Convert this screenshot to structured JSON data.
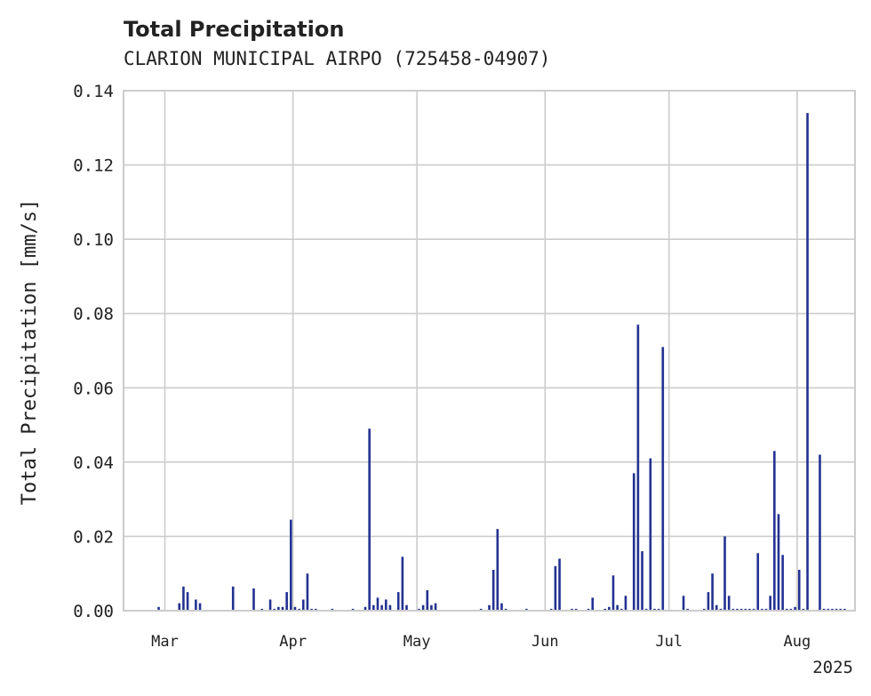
{
  "chart_data": {
    "type": "bar",
    "title": "Total Precipitation",
    "subtitle": "CLARION MUNICIPAL AIRPO (725458-04907)",
    "xlabel": "",
    "ylabel": "Total Precipitation [mm/s]",
    "ylim": [
      0,
      0.14
    ],
    "xlim": [
      "2025-02-19",
      "2025-08-15"
    ],
    "y_ticks": [
      0.0,
      0.02,
      0.04,
      0.06,
      0.08,
      0.1,
      0.12,
      0.14
    ],
    "x_ticks": [
      {
        "date": "2025-03-01",
        "label": "Mar"
      },
      {
        "date": "2025-04-01",
        "label": "Apr"
      },
      {
        "date": "2025-05-01",
        "label": "May"
      },
      {
        "date": "2025-06-01",
        "label": "Jun"
      },
      {
        "date": "2025-07-01",
        "label": "Jul"
      },
      {
        "date": "2025-08-01",
        "label": "Aug"
      }
    ],
    "x_offset_label": "2025",
    "grid": true,
    "color": "#233291",
    "series": [
      {
        "x": [
          "2025-02-27",
          "2025-03-04",
          "2025-03-05",
          "2025-03-06",
          "2025-03-08",
          "2025-03-09",
          "2025-03-17",
          "2025-03-22",
          "2025-03-24",
          "2025-03-26",
          "2025-03-27",
          "2025-03-28",
          "2025-03-29",
          "2025-03-30",
          "2025-03-31",
          "2025-04-01",
          "2025-04-02",
          "2025-04-03",
          "2025-04-04",
          "2025-04-05",
          "2025-04-06",
          "2025-04-10",
          "2025-04-15",
          "2025-04-18",
          "2025-04-19",
          "2025-04-20",
          "2025-04-21",
          "2025-04-22",
          "2025-04-23",
          "2025-04-24",
          "2025-04-26",
          "2025-04-27",
          "2025-04-28",
          "2025-05-01",
          "2025-05-02",
          "2025-05-03",
          "2025-05-04",
          "2025-05-05",
          "2025-05-16",
          "2025-05-18",
          "2025-05-19",
          "2025-05-20",
          "2025-05-21",
          "2025-05-22",
          "2025-05-27",
          "2025-06-02",
          "2025-06-03",
          "2025-06-04",
          "2025-06-07",
          "2025-06-08",
          "2025-06-11",
          "2025-06-12",
          "2025-06-15",
          "2025-06-16",
          "2025-06-17",
          "2025-06-18",
          "2025-06-19",
          "2025-06-20",
          "2025-06-22",
          "2025-06-23",
          "2025-06-24",
          "2025-06-25",
          "2025-06-26",
          "2025-06-27",
          "2025-06-28",
          "2025-06-29",
          "2025-07-04",
          "2025-07-05",
          "2025-07-09",
          "2025-07-10",
          "2025-07-11",
          "2025-07-12",
          "2025-07-13",
          "2025-07-14",
          "2025-07-15",
          "2025-07-16",
          "2025-07-17",
          "2025-07-18",
          "2025-07-19",
          "2025-07-20",
          "2025-07-21",
          "2025-07-22",
          "2025-07-23",
          "2025-07-24",
          "2025-07-25",
          "2025-07-26",
          "2025-07-27",
          "2025-07-28",
          "2025-07-29",
          "2025-07-30",
          "2025-07-31",
          "2025-08-01",
          "2025-08-02",
          "2025-08-03",
          "2025-08-06",
          "2025-08-07",
          "2025-08-08",
          "2025-08-09",
          "2025-08-10",
          "2025-08-11",
          "2025-08-12"
        ],
        "values": [
          0.001,
          0.002,
          0.0065,
          0.005,
          0.003,
          0.002,
          0.0065,
          0.006,
          0.0005,
          0.003,
          0.0005,
          0.001,
          0.001,
          0.005,
          0.0245,
          0.001,
          0.0005,
          0.003,
          0.01,
          0.0005,
          0.0005,
          0.0005,
          0.0005,
          0.001,
          0.049,
          0.0015,
          0.0035,
          0.0015,
          0.003,
          0.0015,
          0.005,
          0.0145,
          0.0015,
          0.0005,
          0.0015,
          0.0055,
          0.0015,
          0.002,
          0.0005,
          0.0015,
          0.011,
          0.022,
          0.002,
          0.0005,
          0.0005,
          0.0005,
          0.012,
          0.014,
          0.0005,
          0.0005,
          0.0005,
          0.0035,
          0.0005,
          0.001,
          0.0095,
          0.0015,
          0.0005,
          0.004,
          0.037,
          0.077,
          0.016,
          0.0005,
          0.041,
          0.0005,
          0.0005,
          0.071,
          0.004,
          0.0005,
          0.0005,
          0.005,
          0.01,
          0.0015,
          0.0005,
          0.02,
          0.004,
          0.0005,
          0.0005,
          0.0005,
          0.0005,
          0.0005,
          0.0005,
          0.0155,
          0.0005,
          0.0005,
          0.004,
          0.043,
          0.026,
          0.015,
          0.0005,
          0.0005,
          0.001,
          0.011,
          0.0005,
          0.134,
          0.042,
          0.0005,
          0.0005,
          0.0005,
          0.0005,
          0.0005,
          0.0005
        ]
      }
    ]
  }
}
